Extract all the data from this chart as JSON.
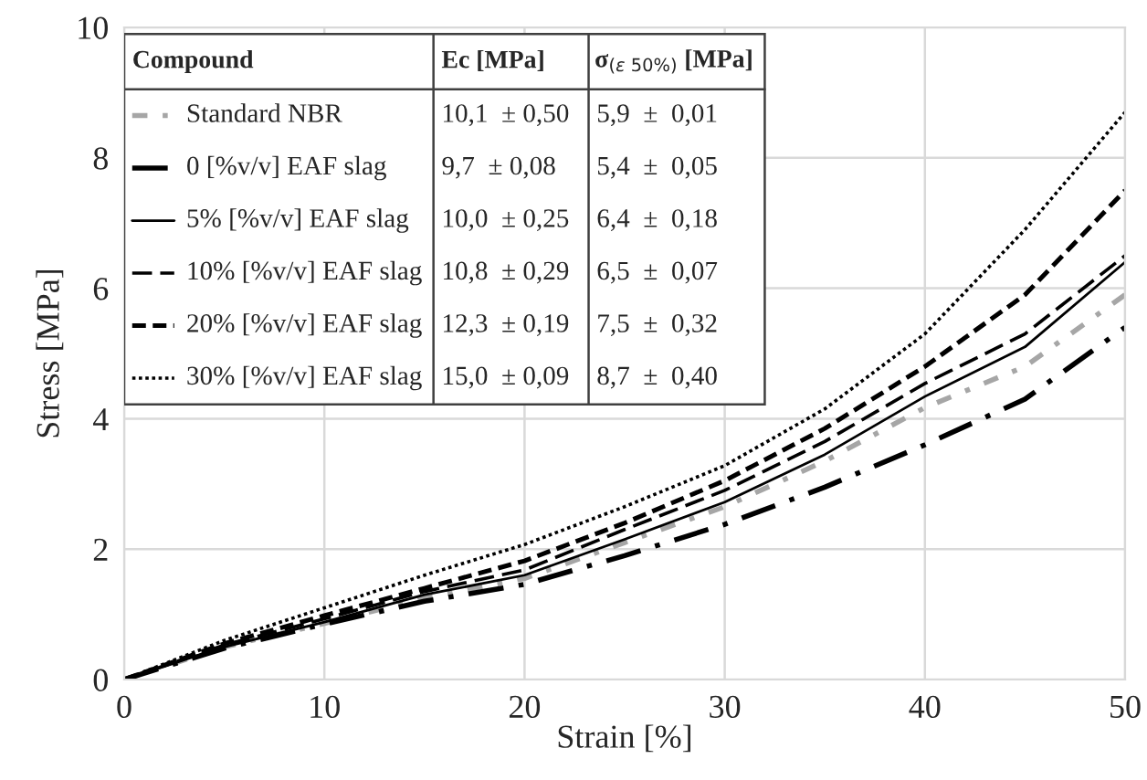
{
  "chart_data": {
    "type": "line",
    "xlabel": "Strain [%]",
    "ylabel": "Stress [MPa]",
    "x": [
      0,
      5,
      10,
      15,
      20,
      25,
      30,
      35,
      40,
      45,
      50
    ],
    "series": [
      {
        "name": "Standard NBR",
        "color": "#a6a6a6",
        "line_style": "dashdot",
        "values": [
          0,
          0.5,
          0.86,
          1.25,
          1.55,
          2.1,
          2.65,
          3.35,
          4.17,
          4.8,
          5.9
        ]
      },
      {
        "name": "0 [%v/v] EAF slag",
        "color": "#000000",
        "line_style": "longdashdot",
        "values": [
          0,
          0.48,
          0.85,
          1.2,
          1.46,
          1.9,
          2.38,
          2.95,
          3.6,
          4.3,
          5.4
        ]
      },
      {
        "name": "5% [%v/v] EAF slag",
        "color": "#000000",
        "line_style": "solid",
        "values": [
          0,
          0.5,
          0.88,
          1.3,
          1.6,
          2.15,
          2.72,
          3.45,
          4.34,
          5.1,
          6.4
        ]
      },
      {
        "name": "10% [%v/v] EAF slag",
        "color": "#000000",
        "line_style": "longdashed",
        "values": [
          0,
          0.53,
          0.93,
          1.35,
          1.68,
          2.3,
          2.9,
          3.65,
          4.54,
          5.3,
          6.5
        ]
      },
      {
        "name": "20% [%v/v] EAF slag",
        "color": "#000000",
        "line_style": "dashed",
        "values": [
          0,
          0.55,
          0.98,
          1.4,
          1.82,
          2.4,
          3.05,
          3.85,
          4.8,
          5.9,
          7.5
        ]
      },
      {
        "name": "30% [%v/v] EAF slag",
        "color": "#000000",
        "line_style": "dotted",
        "values": [
          0,
          0.6,
          1.1,
          1.6,
          2.07,
          2.65,
          3.28,
          4.15,
          5.3,
          6.9,
          8.7
        ]
      }
    ],
    "xlim": [
      0,
      50
    ],
    "xticks": [
      0,
      10,
      20,
      30,
      40,
      50
    ],
    "ylim": [
      0,
      10
    ],
    "yticks": [
      0,
      2,
      4,
      6,
      8,
      10
    ],
    "grid": true,
    "legend": "top left",
    "annotations": [
      "Compound",
      "Ec [MPa]",
      "σ$_{(ε 50%)}$ [MPa]",
      "10,1  ± 0,50",
      "5,9  ±  0,01",
      "9,7  ± 0,08",
      "5,4  ±  0,05",
      "10,0  ± 0,25",
      "6,4  ±  0,18",
      "10,8  ± 0,29",
      "6,5  ±  0,07",
      "12,3  ± 0,19",
      "7,5  ±  0,32",
      "15,0  ± 0,09",
      "8,7  ±  0,40"
    ]
  }
}
